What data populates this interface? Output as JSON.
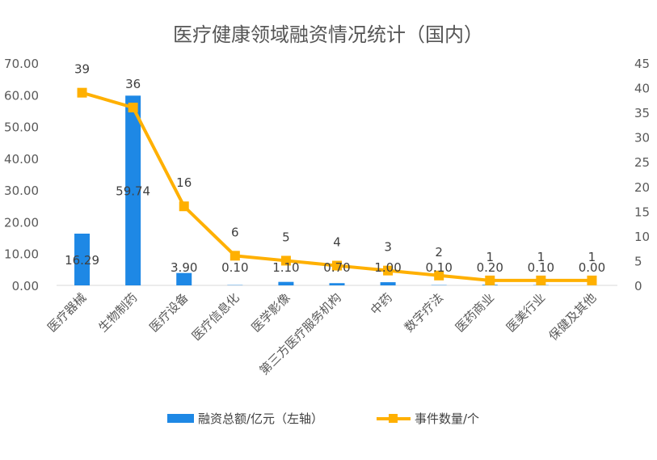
{
  "chart_data": {
    "type": "bar",
    "title": "医疗健康领域融资情况统计（国内）",
    "categories": [
      "医疗器械",
      "生物制药",
      "医疗设备",
      "医疗信息化",
      "医学影像",
      "第三方医疗服务机构",
      "中药",
      "数字疗法",
      "医药商业",
      "医美行业",
      "保健及其他"
    ],
    "series": [
      {
        "name": "融资总额/亿元（左轴）",
        "type": "bar",
        "axis": "left",
        "color": "#1E88E5",
        "values": [
          16.29,
          59.74,
          3.9,
          0.1,
          1.1,
          0.7,
          1.0,
          0.1,
          0.2,
          0.1,
          0.0
        ],
        "labels": [
          "16.29",
          "59.74",
          "3.90",
          "0.10",
          "1.10",
          "0.70",
          "1.00",
          "0.10",
          "0.20",
          "0.10",
          "0.00"
        ]
      },
      {
        "name": "事件数量/个",
        "type": "line",
        "axis": "right",
        "color": "#FFB000",
        "marker": "square",
        "values": [
          39,
          36,
          16,
          6,
          5,
          4,
          3,
          2,
          1,
          1,
          1
        ],
        "labels": [
          "39",
          "36",
          "16",
          "6",
          "5",
          "4",
          "3",
          "2",
          "1",
          "1",
          "1"
        ]
      }
    ],
    "y_left": {
      "range": [
        0,
        70
      ],
      "ticks": [
        "0.00",
        "10.00",
        "20.00",
        "30.00",
        "40.00",
        "50.00",
        "60.00",
        "70.00"
      ]
    },
    "y_right": {
      "range": [
        0,
        45
      ],
      "ticks": [
        "0",
        "5",
        "10",
        "15",
        "20",
        "25",
        "30",
        "35",
        "40",
        "45"
      ]
    },
    "grid": false,
    "legend_position": "bottom"
  }
}
